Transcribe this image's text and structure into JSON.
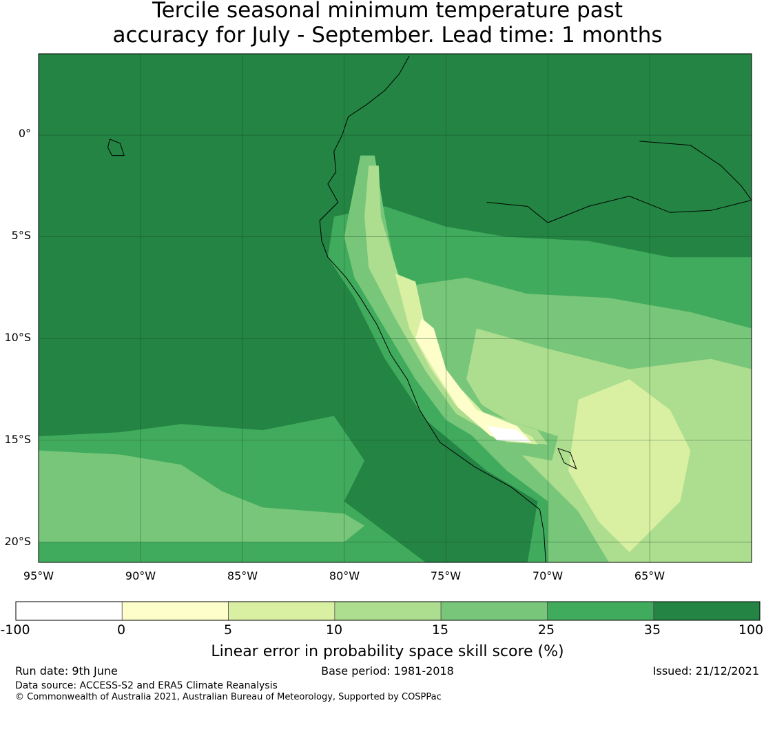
{
  "title": {
    "line1": "Tercile seasonal minimum temperature past",
    "line2": "accuracy for July - September. Lead time: 1 months"
  },
  "map": {
    "lon_range": [
      -95,
      -60
    ],
    "lat_range": [
      -21,
      4
    ],
    "lat_labels": [
      "0°",
      "5°S",
      "10°S",
      "15°S",
      "20°S"
    ],
    "lon_labels": [
      "95°W",
      "90°W",
      "85°W",
      "80°W",
      "75°W",
      "70°W",
      "65°W"
    ],
    "lat_values": [
      0,
      -5,
      -10,
      -15,
      -20
    ],
    "lon_values": [
      -95,
      -90,
      -85,
      -80,
      -75,
      -70,
      -65
    ]
  },
  "colorbar": {
    "title": "Linear error in probability space skill score (%)",
    "ticks": [
      "-100",
      "0",
      "5",
      "10",
      "15",
      "25",
      "35",
      "100"
    ],
    "colors": [
      "#ffffff",
      "#fefecb",
      "#d9f0a3",
      "#addd8e",
      "#78c679",
      "#41ab5d",
      "#238443"
    ]
  },
  "footer": {
    "run_date": "Run date: 9th June",
    "base_period": "Base period: 1981-2018",
    "issued": "Issued: 21/12/2021",
    "data_source": "Data source: ACCESS-S2 and ERA5 Climate Reanalysis",
    "copyright": "© Commonwealth of Australia 2021, Australian Bureau of Meteorology, Supported by COSPPac"
  }
}
